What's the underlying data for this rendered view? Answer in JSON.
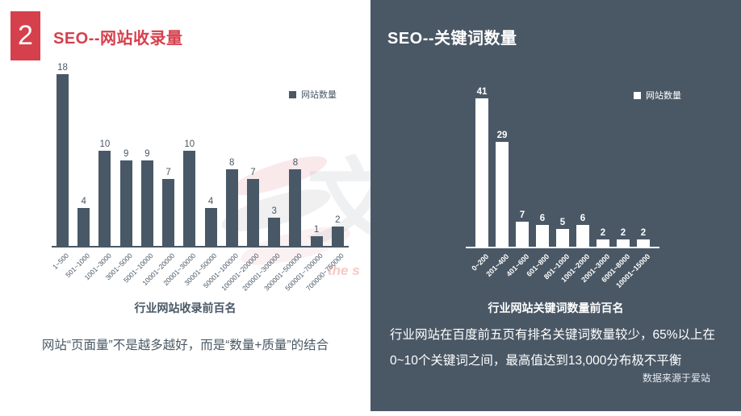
{
  "slide": {
    "badge_number": "2",
    "left": {
      "title": "SEO--网站收录量",
      "caption": "行业网站收录前百名",
      "note": "网站“页面量”不是越多越好，而是“数量+质量”的结合",
      "watermark_char": "文",
      "watermark_text": "the s"
    },
    "right": {
      "title": "SEO--关键词数量",
      "caption": "行业网站关键词数量前百名",
      "note_line1": "行业网站在百度前五页有排名关键词数量较少，65%以上在",
      "note_line2": "0~10个关键词之间，最高值达到13,000分布极不平衡",
      "source": "数据来源于爱站"
    },
    "colors": {
      "accent_red": "#d6404d",
      "slate": "#495866",
      "panel_bg": "#4a5866",
      "white": "#ffffff"
    }
  },
  "chart_data": [
    {
      "type": "bar",
      "title": "行业网站收录前百名",
      "series_name": "网站数量",
      "categories": [
        "1~500",
        "501~1000",
        "1001~3000",
        "3001~5000",
        "5001~10000",
        "10001~20000",
        "20001~30000",
        "30001~50000",
        "50001~100000",
        "100001~200000",
        "200001~300000",
        "300001~500000",
        "500001~700000",
        "700000~750000"
      ],
      "values": [
        18,
        4,
        10,
        9,
        9,
        7,
        10,
        4,
        8,
        7,
        3,
        8,
        1,
        2
      ],
      "ylim": [
        0,
        18
      ],
      "bar_color": "#495866",
      "grid": false,
      "legend_position": "top-right"
    },
    {
      "type": "bar",
      "title": "行业网站关键词数量前百名",
      "series_name": "网站数量",
      "categories": [
        "0~200",
        "201~400",
        "401~600",
        "601~800",
        "801~1000",
        "1001~2000",
        "2001~3000",
        "6001~8000",
        "10001~15000"
      ],
      "values": [
        41,
        29,
        7,
        6,
        5,
        6,
        2,
        2,
        2
      ],
      "ylim": [
        0,
        41
      ],
      "bar_color": "#ffffff",
      "grid": false,
      "legend_position": "top-right"
    }
  ]
}
